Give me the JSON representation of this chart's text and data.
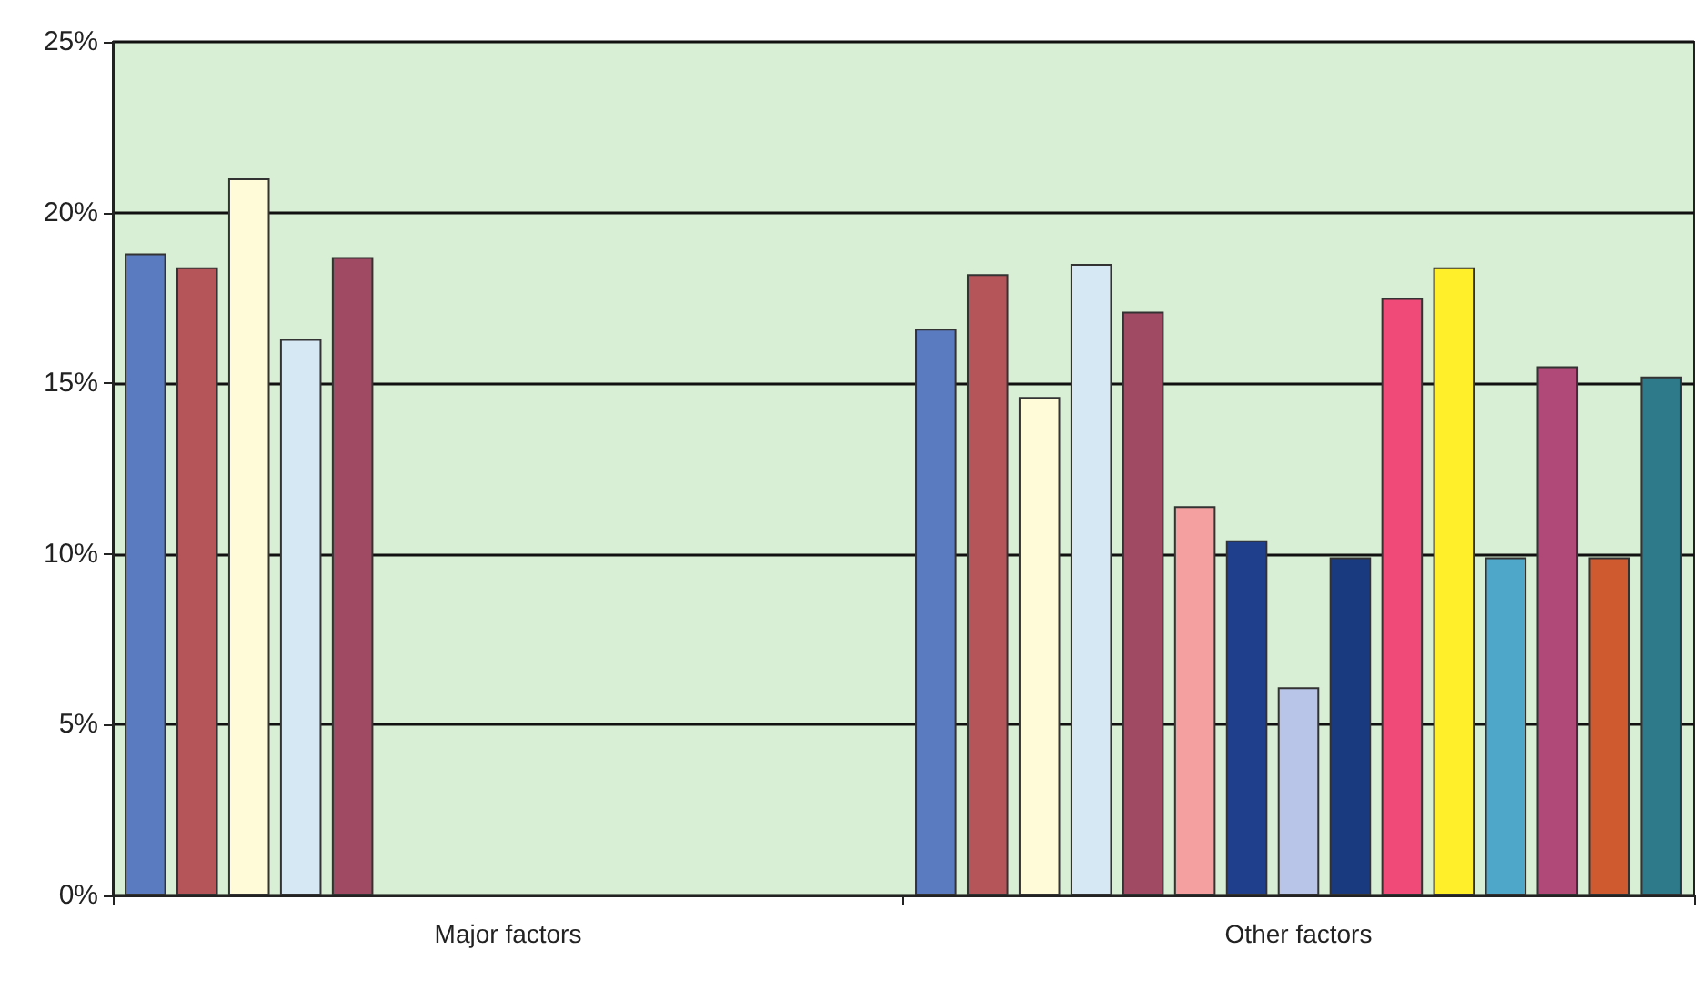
{
  "chart_data": {
    "type": "bar",
    "categories": [
      "Major factors",
      "Other factors"
    ],
    "series": [
      {
        "color": "#5b7bc0",
        "values": [
          18.8,
          16.6
        ]
      },
      {
        "color": "#b5555a",
        "values": [
          18.4,
          18.2
        ]
      },
      {
        "color": "#fffbd8",
        "values": [
          21.0,
          14.6
        ]
      },
      {
        "color": "#d7e8f5",
        "values": [
          16.3,
          18.5
        ]
      },
      {
        "color": "#a04a63",
        "values": [
          18.7,
          17.1
        ]
      },
      {
        "color": "#f4a0a0",
        "values": [
          null,
          11.4
        ]
      },
      {
        "color": "#1f3f8c",
        "values": [
          null,
          10.4
        ]
      },
      {
        "color": "#b8c4e8",
        "values": [
          null,
          6.1
        ]
      },
      {
        "color": "#1a3a80",
        "values": [
          null,
          9.9
        ]
      },
      {
        "color": "#f04a78",
        "values": [
          null,
          17.5
        ]
      },
      {
        "color": "#ffef2a",
        "values": [
          null,
          18.4
        ]
      },
      {
        "color": "#4ea6c8",
        "values": [
          null,
          9.9
        ]
      },
      {
        "color": "#b04878",
        "values": [
          null,
          15.5
        ]
      },
      {
        "color": "#d05a30",
        "values": [
          null,
          9.9
        ]
      },
      {
        "color": "#2e7a8a",
        "values": [
          null,
          15.2
        ]
      }
    ],
    "ylim": [
      0,
      25
    ],
    "yticks": [
      {
        "value": 0,
        "label": "0%"
      },
      {
        "value": 5,
        "label": "5%"
      },
      {
        "value": 10,
        "label": "10%"
      },
      {
        "value": 15,
        "label": "15%"
      },
      {
        "value": 20,
        "label": "20%"
      },
      {
        "value": 25,
        "label": "25%"
      }
    ],
    "grid": "y"
  }
}
